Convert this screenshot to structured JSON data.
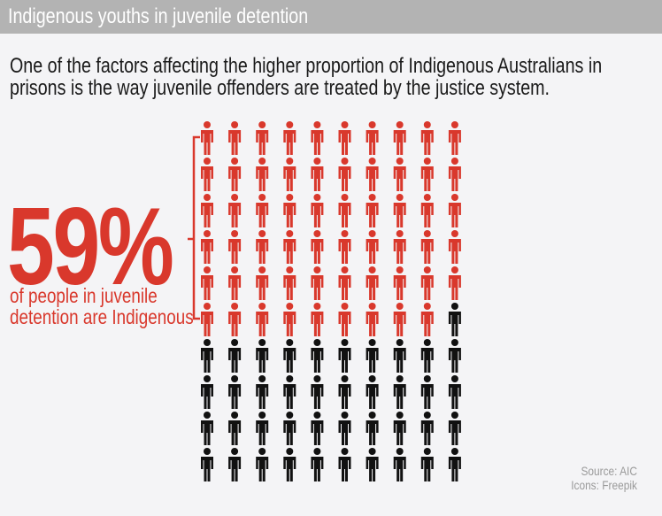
{
  "header": {
    "title": "Indigenous youths in juvenile detention"
  },
  "intro": "One of the factors affecting the higher proportion of Indigenous Australians in prisons is the way juvenile offenders are treated by the justice system.",
  "chart_data": {
    "type": "pictogram",
    "total": 100,
    "highlighted": 59,
    "rows": 10,
    "columns": 10,
    "icon": "person-icon",
    "colors": {
      "highlighted": "#d9382c",
      "other": "#111111"
    },
    "headline": "59%",
    "label": "of people in juvenile detention are Indigenous"
  },
  "footer": {
    "source": "Source: AIC",
    "icons": "Icons: Freepik"
  }
}
